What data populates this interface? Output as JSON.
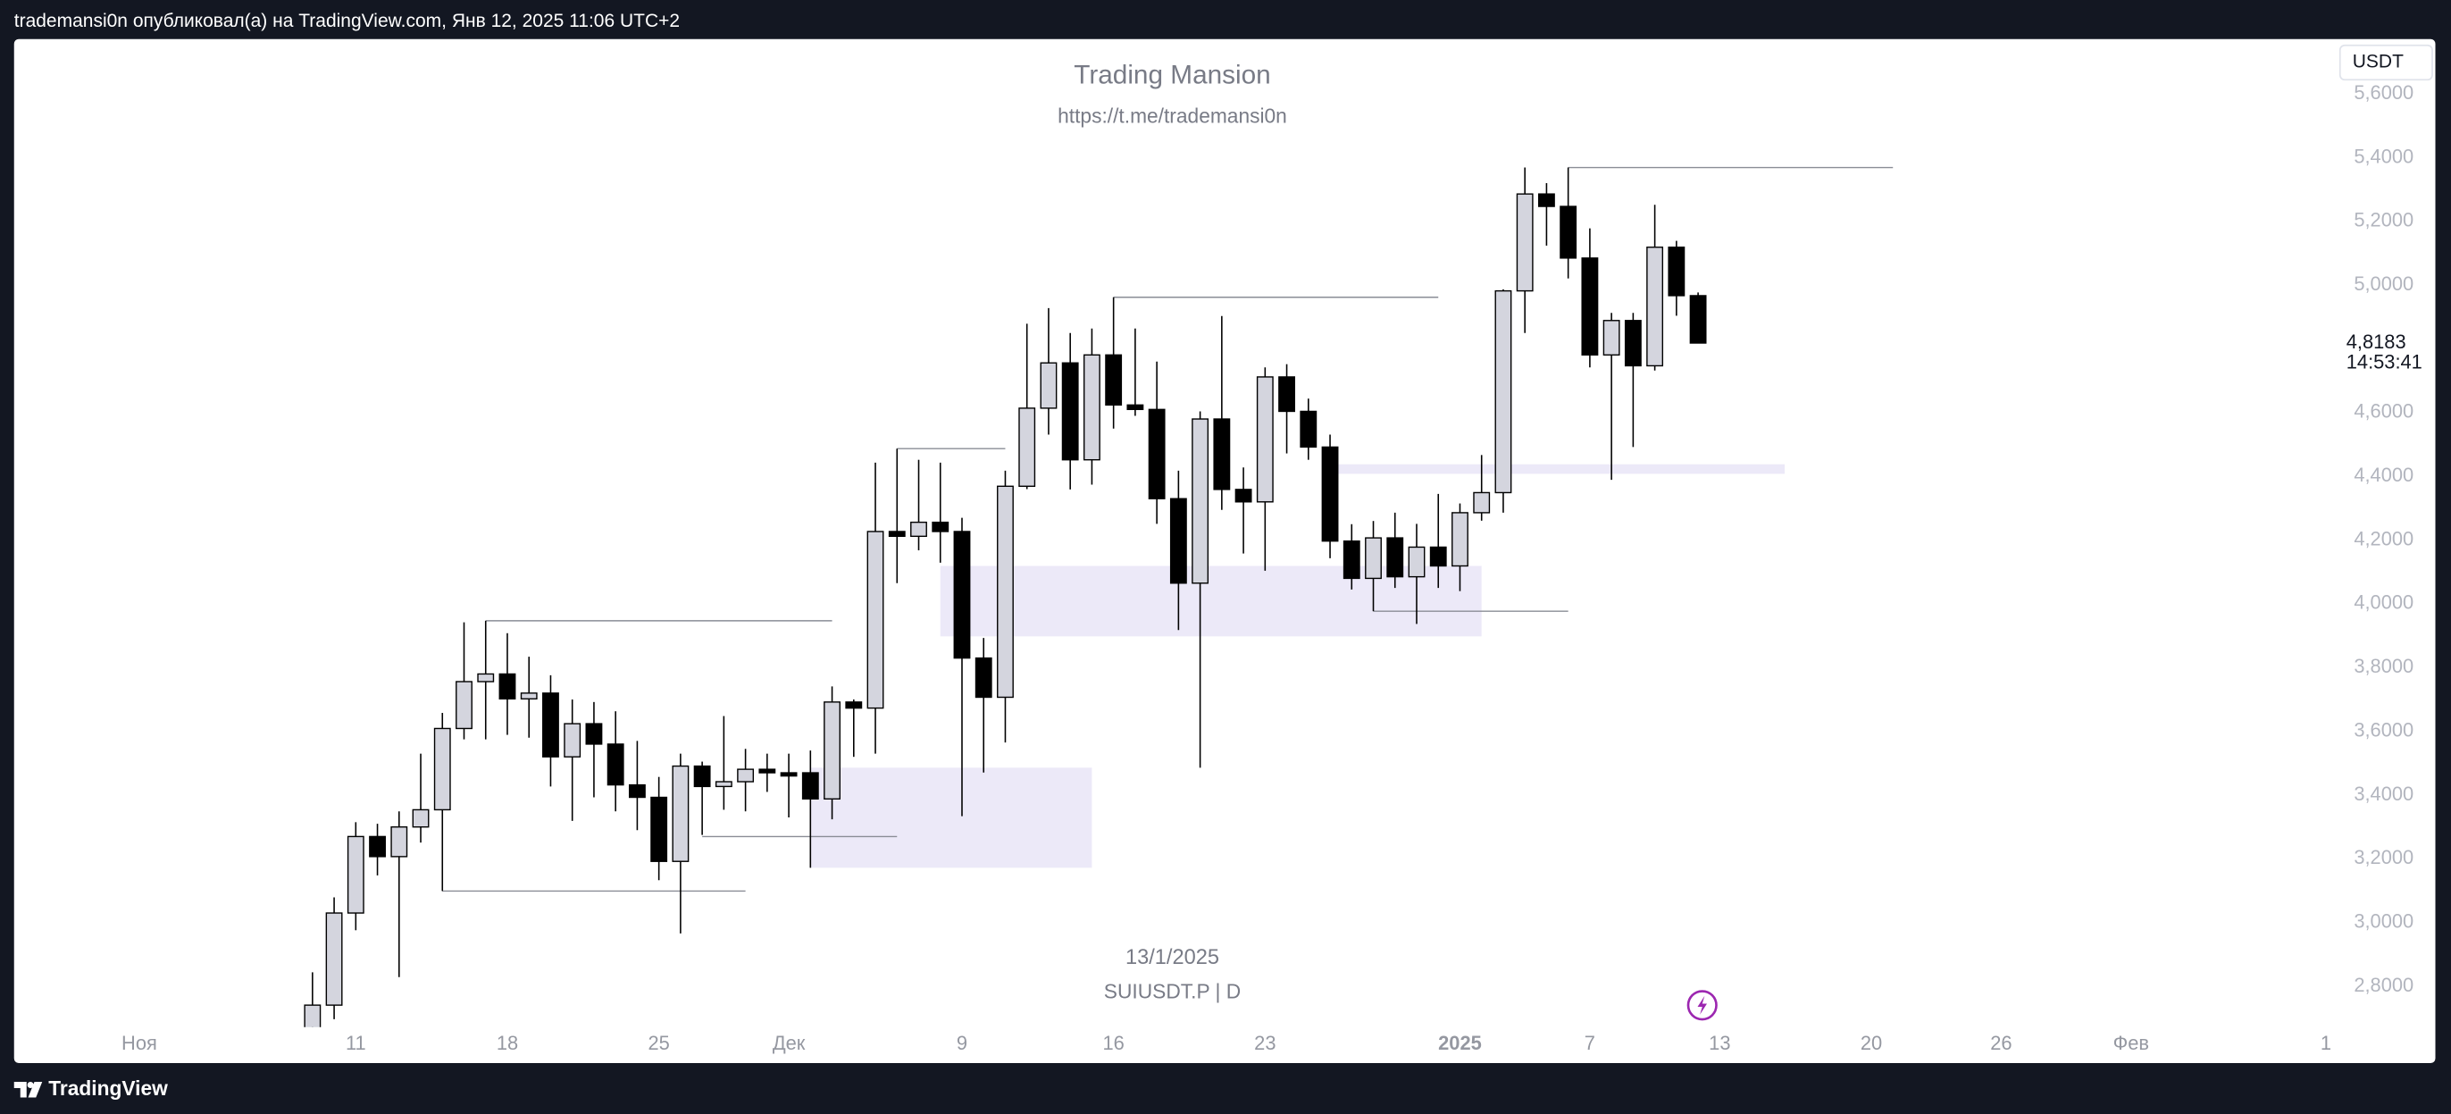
{
  "header": {
    "text": "trademansi0n опубликовал(а) на TradingView.com, Янв 12, 2025 11:06 UTC+2"
  },
  "footer": {
    "brand": "TradingView"
  },
  "chart_data": {
    "type": "candlestick",
    "title": "Trading Mansion",
    "subtitle": "https://t.me/trademansi0n",
    "date_label": "13/1/2025",
    "symbol": "SUIUSDT.P | D",
    "currency": "USDT",
    "last_label": "4,8183",
    "countdown": "14:53:41",
    "up_color": "#d4d5de",
    "down_color": "#000000",
    "zone_color": "#ece9f8",
    "level_color": "#8a8d96",
    "xlim": [
      "2024-10-26",
      "2025-02-10"
    ],
    "ylim": [
      2.672,
      5.772
    ],
    "xticks": [
      {
        "value": "2024-11-01",
        "label": "Ноя"
      },
      {
        "value": "2024-11-11",
        "label": "11"
      },
      {
        "value": "2024-11-18",
        "label": "18"
      },
      {
        "value": "2024-11-25",
        "label": "25"
      },
      {
        "value": "2024-12-01",
        "label": "Дек"
      },
      {
        "value": "2024-12-09",
        "label": "9"
      },
      {
        "value": "2024-12-16",
        "label": "16"
      },
      {
        "value": "2024-12-23",
        "label": "23"
      },
      {
        "value": "2025-01-01",
        "label": "2025"
      },
      {
        "value": "2025-01-07",
        "label": "7"
      },
      {
        "value": "2025-01-13",
        "label": "13"
      },
      {
        "value": "2025-01-20",
        "label": "20"
      },
      {
        "value": "2025-01-26",
        "label": "26"
      },
      {
        "value": "2025-02-01",
        "label": "Фев"
      },
      {
        "value": "2025-02-10",
        "label": "1"
      }
    ],
    "yticks": [
      {
        "value": 5.6,
        "label": "5,6000"
      },
      {
        "value": 5.4,
        "label": "5,4000"
      },
      {
        "value": 5.2,
        "label": "5,2000"
      },
      {
        "value": 5.0,
        "label": "5,0000"
      },
      {
        "value": 4.6,
        "label": "4,6000"
      },
      {
        "value": 4.4,
        "label": "4,4000"
      },
      {
        "value": 4.2,
        "label": "4,2000"
      },
      {
        "value": 4.0,
        "label": "4,0000"
      },
      {
        "value": 3.8,
        "label": "3,8000"
      },
      {
        "value": 3.6,
        "label": "3,6000"
      },
      {
        "value": 3.4,
        "label": "3,4000"
      },
      {
        "value": 3.2,
        "label": "3,2000"
      },
      {
        "value": 3.0,
        "label": "3,0000"
      },
      {
        "value": 2.8,
        "label": "2,8000"
      }
    ],
    "x": [
      "2024-11-09",
      "2024-11-10",
      "2024-11-11",
      "2024-11-12",
      "2024-11-13",
      "2024-11-14",
      "2024-11-15",
      "2024-11-16",
      "2024-11-17",
      "2024-11-18",
      "2024-11-19",
      "2024-11-20",
      "2024-11-21",
      "2024-11-22",
      "2024-11-23",
      "2024-11-24",
      "2024-11-25",
      "2024-11-26",
      "2024-11-27",
      "2024-11-28",
      "2024-11-29",
      "2024-11-30",
      "2024-12-01",
      "2024-12-02",
      "2024-12-03",
      "2024-12-04",
      "2024-12-05",
      "2024-12-06",
      "2024-12-07",
      "2024-12-08",
      "2024-12-09",
      "2024-12-10",
      "2024-12-11",
      "2024-12-12",
      "2024-12-13",
      "2024-12-14",
      "2024-12-15",
      "2024-12-16",
      "2024-12-17",
      "2024-12-18",
      "2024-12-19",
      "2024-12-20",
      "2024-12-21",
      "2024-12-22",
      "2024-12-23",
      "2024-12-24",
      "2024-12-25",
      "2024-12-26",
      "2024-12-27",
      "2024-12-28",
      "2024-12-29",
      "2024-12-30",
      "2024-12-31",
      "2025-01-01",
      "2025-01-02",
      "2025-01-03",
      "2025-01-04",
      "2025-01-05",
      "2025-01-06",
      "2025-01-07",
      "2025-01-08",
      "2025-01-09",
      "2025-01-10",
      "2025-01-11",
      "2025-01-12"
    ],
    "open": [
      2.66,
      2.741,
      3.03,
      3.27,
      3.207,
      3.3,
      3.354,
      3.609,
      3.756,
      3.78,
      3.702,
      3.72,
      3.52,
      3.624,
      3.56,
      3.432,
      3.393,
      3.192,
      3.491,
      3.427,
      3.442,
      3.481,
      3.47,
      3.47,
      3.388,
      3.692,
      3.673,
      4.227,
      4.212,
      4.256,
      4.227,
      3.83,
      3.707,
      4.369,
      4.614,
      4.756,
      4.452,
      4.781,
      4.624,
      4.61,
      4.33,
      4.065,
      4.58,
      4.359,
      4.32,
      4.712,
      4.604,
      4.492,
      4.197,
      4.08,
      4.207,
      4.085,
      4.178,
      4.119,
      4.286,
      4.349,
      4.982,
      5.286,
      5.247,
      5.085,
      4.781,
      4.889,
      4.747,
      5.119,
      4.967
    ],
    "high": [
      2.844,
      3.079,
      3.315,
      3.31,
      3.349,
      3.53,
      3.658,
      3.942,
      3.947,
      3.908,
      3.834,
      3.776,
      3.7,
      3.692,
      3.663,
      3.57,
      3.457,
      3.53,
      3.505,
      3.648,
      3.545,
      3.53,
      3.53,
      3.54,
      3.741,
      3.7,
      4.443,
      4.487,
      4.452,
      4.443,
      4.27,
      3.893,
      4.418,
      4.879,
      4.928,
      4.85,
      4.864,
      4.962,
      4.864,
      4.76,
      4.418,
      4.604,
      4.903,
      4.428,
      4.742,
      4.752,
      4.644,
      4.531,
      4.25,
      4.26,
      4.286,
      4.251,
      4.345,
      4.315,
      4.467,
      4.987,
      5.369,
      5.32,
      5.369,
      5.178,
      4.913,
      4.913,
      5.252,
      5.139,
      4.977
    ],
    "low": [
      2.6,
      2.697,
      2.976,
      3.148,
      2.829,
      3.251,
      3.099,
      3.575,
      3.575,
      3.589,
      3.58,
      3.427,
      3.319,
      3.393,
      3.349,
      3.29,
      3.133,
      2.966,
      3.275,
      3.354,
      3.349,
      3.41,
      3.33,
      3.172,
      3.324,
      3.52,
      3.53,
      4.065,
      4.168,
      4.129,
      3.334,
      3.471,
      3.565,
      4.36,
      4.531,
      4.359,
      4.374,
      4.55,
      4.59,
      4.251,
      3.918,
      3.486,
      4.295,
      4.158,
      4.104,
      4.472,
      4.452,
      4.143,
      4.045,
      3.977,
      4.05,
      3.937,
      4.05,
      4.04,
      4.261,
      4.286,
      4.85,
      5.124,
      5.021,
      4.742,
      4.389,
      4.492,
      4.732,
      4.904,
      4.8183
    ],
    "close": [
      2.741,
      3.03,
      3.27,
      3.207,
      3.3,
      3.354,
      3.609,
      3.756,
      3.78,
      3.702,
      3.72,
      3.52,
      3.624,
      3.56,
      3.432,
      3.393,
      3.192,
      3.491,
      3.427,
      3.442,
      3.481,
      3.47,
      3.46,
      3.388,
      3.692,
      3.673,
      4.227,
      4.212,
      4.256,
      4.227,
      3.83,
      3.707,
      4.369,
      4.614,
      4.756,
      4.452,
      4.781,
      4.624,
      4.61,
      4.33,
      4.065,
      4.58,
      4.359,
      4.32,
      4.712,
      4.604,
      4.492,
      4.197,
      4.08,
      4.207,
      4.085,
      4.178,
      4.119,
      4.286,
      4.349,
      4.982,
      5.286,
      5.247,
      5.085,
      4.781,
      4.889,
      4.747,
      5.119,
      4.967,
      4.8183
    ],
    "zones": [
      {
        "from": "2024-12-02",
        "to": "2024-12-15",
        "low": 3.172,
        "high": 3.486
      },
      {
        "from": "2024-12-08",
        "to": "2025-01-02",
        "low": 3.898,
        "high": 4.119
      },
      {
        "from": "2024-12-26",
        "to": "2025-01-16",
        "low": 4.408,
        "high": 4.438
      }
    ],
    "levels": [
      {
        "from": "2024-11-15",
        "to": "2024-11-29",
        "price": 3.099
      },
      {
        "from": "2024-11-17",
        "to": "2024-12-03",
        "price": 3.947
      },
      {
        "from": "2024-11-27",
        "to": "2024-12-06",
        "price": 3.27
      },
      {
        "from": "2024-12-06",
        "to": "2024-12-11",
        "price": 4.487
      },
      {
        "from": "2024-12-16",
        "to": "2024-12-31",
        "price": 4.962
      },
      {
        "from": "2024-12-28",
        "to": "2025-01-06",
        "price": 3.977
      },
      {
        "from": "2025-01-06",
        "to": "2025-01-21",
        "price": 5.369
      }
    ]
  }
}
